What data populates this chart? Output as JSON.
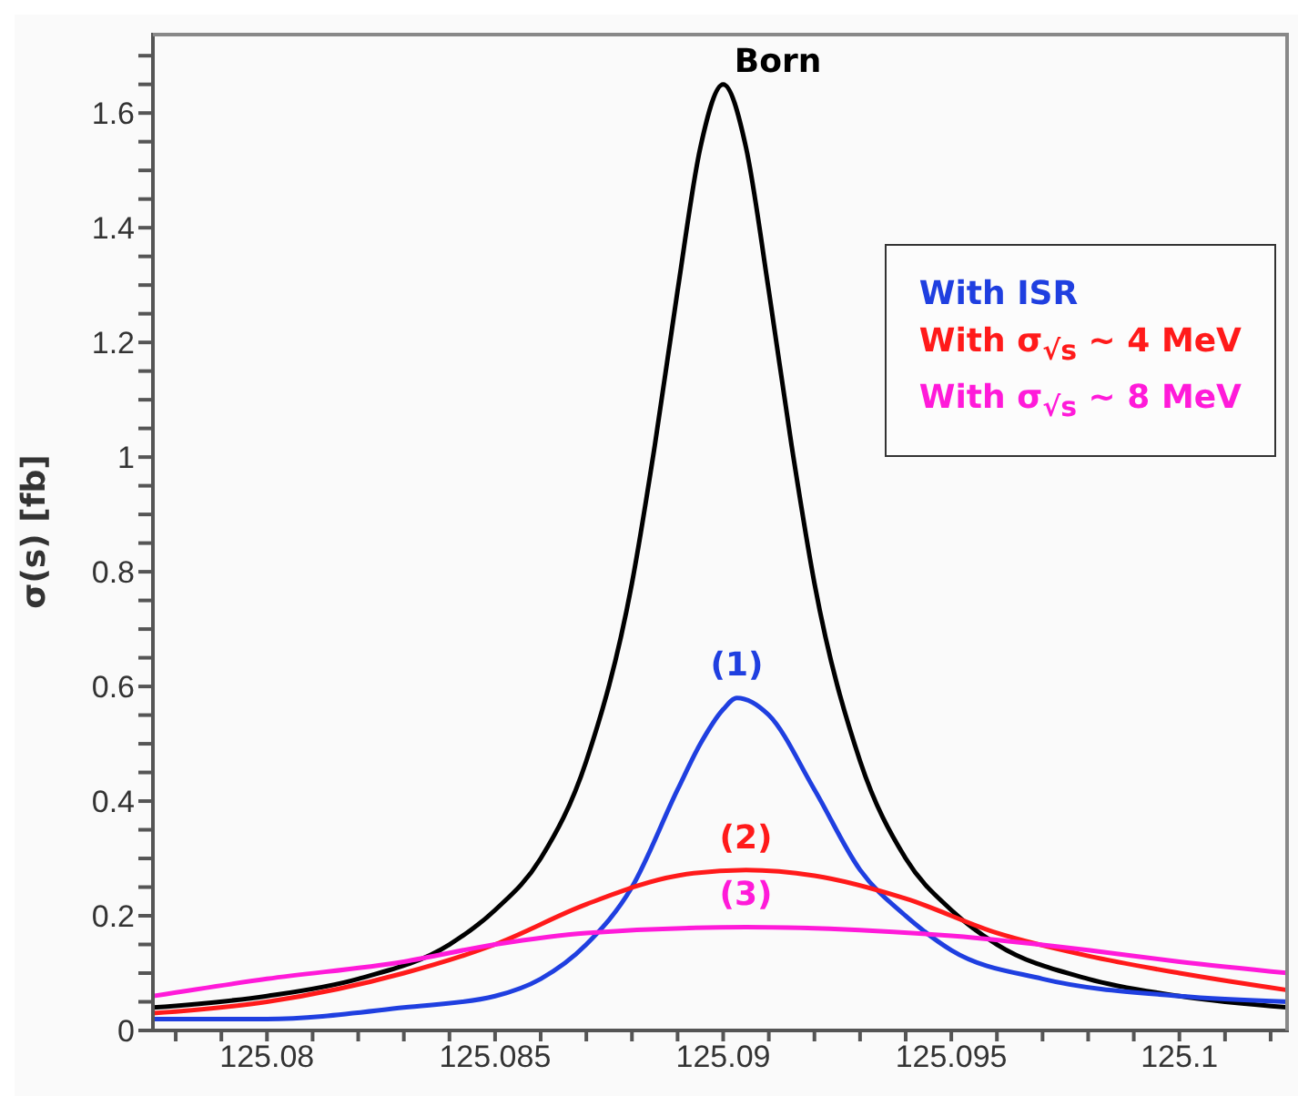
{
  "chart_data": {
    "type": "line",
    "ylabel": "σ(s) [fb]",
    "xlim": [
      125.0775,
      125.1024
    ],
    "ylim": [
      0,
      1.74
    ],
    "xticks": [
      125.08,
      125.085,
      125.09,
      125.095,
      125.1,
      {
        "value": 125.078,
        "label": null
      },
      {
        "value": 125.079,
        "label": null
      },
      {
        "value": 125.081,
        "label": null
      },
      {
        "value": 125.082,
        "label": null
      },
      {
        "value": 125.083,
        "label": null
      },
      {
        "value": 125.084,
        "label": null
      },
      {
        "value": 125.086,
        "label": null
      },
      {
        "value": 125.087,
        "label": null
      },
      {
        "value": 125.088,
        "label": null
      },
      {
        "value": 125.089,
        "label": null
      },
      {
        "value": 125.091,
        "label": null
      },
      {
        "value": 125.092,
        "label": null
      },
      {
        "value": 125.093,
        "label": null
      },
      {
        "value": 125.094,
        "label": null
      },
      {
        "value": 125.096,
        "label": null
      },
      {
        "value": 125.097,
        "label": null
      },
      {
        "value": 125.098,
        "label": null
      },
      {
        "value": 125.099,
        "label": null
      },
      {
        "value": 125.101,
        "label": null
      },
      {
        "value": 125.102,
        "label": null
      }
    ],
    "yticks": [
      0,
      0.2,
      0.4,
      0.6,
      0.8,
      1,
      1.2,
      1.4,
      1.6,
      {
        "value": 0.05,
        "label": null
      },
      {
        "value": 0.1,
        "label": null
      },
      {
        "value": 0.15,
        "label": null
      },
      {
        "value": 0.25,
        "label": null
      },
      {
        "value": 0.3,
        "label": null
      },
      {
        "value": 0.35,
        "label": null
      },
      {
        "value": 0.45,
        "label": null
      },
      {
        "value": 0.5,
        "label": null
      },
      {
        "value": 0.55,
        "label": null
      },
      {
        "value": 0.65,
        "label": null
      },
      {
        "value": 0.7,
        "label": null
      },
      {
        "value": 0.75,
        "label": null
      },
      {
        "value": 0.85,
        "label": null
      },
      {
        "value": 0.9,
        "label": null
      },
      {
        "value": 0.95,
        "label": null
      },
      {
        "value": 1.05,
        "label": null
      },
      {
        "value": 1.1,
        "label": null
      },
      {
        "value": 1.15,
        "label": null
      },
      {
        "value": 1.25,
        "label": null
      },
      {
        "value": 1.3,
        "label": null
      },
      {
        "value": 1.35,
        "label": null
      },
      {
        "value": 1.45,
        "label": null
      },
      {
        "value": 1.5,
        "label": null
      },
      {
        "value": 1.55,
        "label": null
      },
      {
        "value": 1.65,
        "label": null
      },
      {
        "value": 1.7,
        "label": null
      }
    ],
    "legend": "top right",
    "marker": "none",
    "line_style": "solid",
    "annotations": [
      "(1)",
      "(2)",
      "(3)"
    ],
    "series": [
      {
        "name": "Born",
        "color": "#000000",
        "x": [
          125.0775,
          125.08,
          125.082,
          125.084,
          125.085,
          125.086,
          125.087,
          125.088,
          125.0885,
          125.089,
          125.0895,
          125.09,
          125.0905,
          125.091,
          125.0915,
          125.092,
          125.093,
          125.094,
          125.095,
          125.096,
          125.098,
          125.1,
          125.1024
        ],
        "values": [
          0.04,
          0.06,
          0.09,
          0.15,
          0.21,
          0.3,
          0.47,
          0.78,
          1.02,
          1.29,
          1.54,
          1.65,
          1.54,
          1.29,
          1.02,
          0.78,
          0.47,
          0.3,
          0.21,
          0.15,
          0.09,
          0.06,
          0.04
        ]
      },
      {
        "name": "With ISR",
        "color": "#1f3fe0",
        "x": [
          125.0775,
          125.08,
          125.083,
          125.085,
          125.086,
          125.087,
          125.088,
          125.089,
          125.0895,
          125.09,
          125.0903,
          125.091,
          125.092,
          125.093,
          125.094,
          125.095,
          125.097,
          125.1,
          125.1024
        ],
        "values": [
          0.02,
          0.02,
          0.04,
          0.06,
          0.09,
          0.15,
          0.25,
          0.42,
          0.5,
          0.56,
          0.58,
          0.55,
          0.42,
          0.28,
          0.2,
          0.14,
          0.09,
          0.06,
          0.05
        ]
      },
      {
        "name": "With σ$_{√s}$ ~ 4 MeV",
        "color": "#ff1a1a",
        "x": [
          125.0775,
          125.08,
          125.083,
          125.085,
          125.087,
          125.089,
          125.0905,
          125.092,
          125.094,
          125.096,
          125.098,
          125.1,
          125.1024
        ],
        "values": [
          0.03,
          0.05,
          0.1,
          0.15,
          0.22,
          0.27,
          0.28,
          0.27,
          0.23,
          0.17,
          0.13,
          0.1,
          0.07
        ]
      },
      {
        "name": "With σ$_{√s}$ ~ 8 MeV",
        "color": "#ff1ad9",
        "x": [
          125.0775,
          125.08,
          125.083,
          125.085,
          125.087,
          125.0905,
          125.093,
          125.095,
          125.098,
          125.1,
          125.1024
        ],
        "values": [
          0.06,
          0.09,
          0.12,
          0.15,
          0.17,
          0.18,
          0.175,
          0.165,
          0.14,
          0.12,
          0.1
        ]
      }
    ]
  }
}
